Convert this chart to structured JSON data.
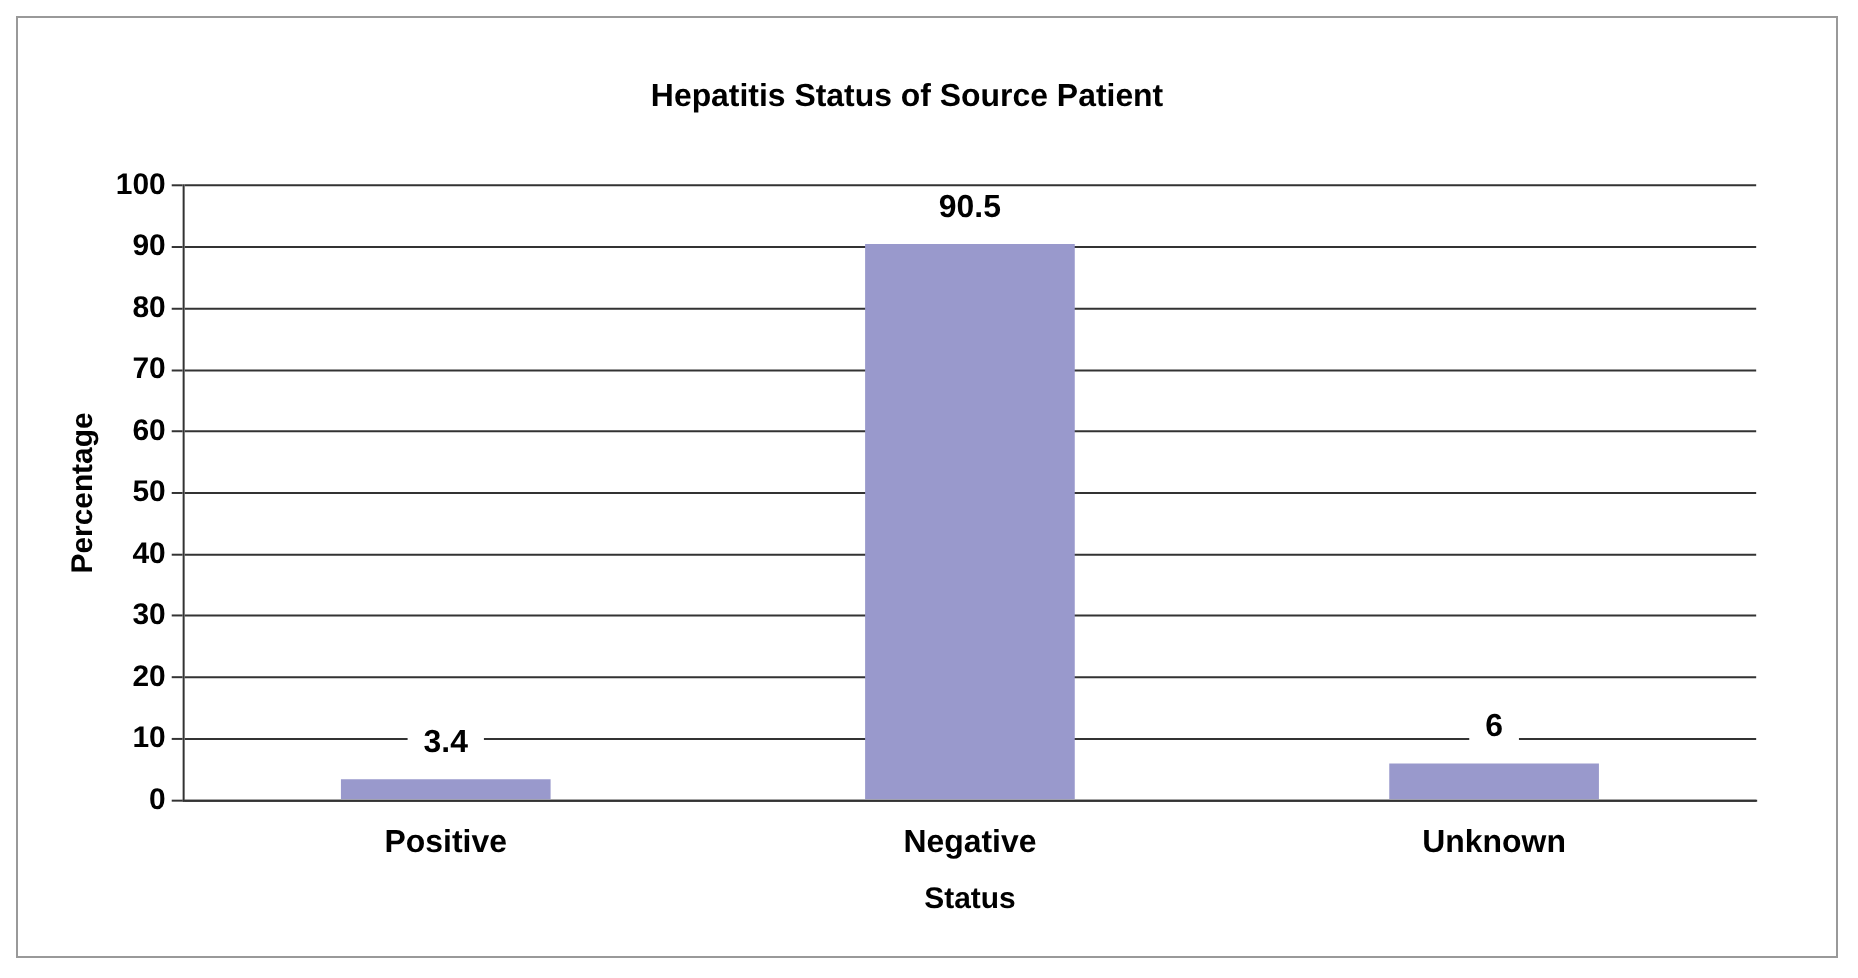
{
  "chart_data": {
    "type": "bar",
    "title": "Hepatitis Status of Source Patient",
    "xlabel": "Status",
    "ylabel": "Percentage",
    "categories": [
      "Positive",
      "Negative",
      "Unknown"
    ],
    "values": [
      3.4,
      90.5,
      6
    ],
    "color": "#9999cc",
    "ylim": [
      0,
      100
    ],
    "yticks": [
      0,
      10,
      20,
      30,
      40,
      50,
      60,
      70,
      80,
      90,
      100
    ],
    "grid": "y",
    "data_labels": true,
    "legend": false
  }
}
